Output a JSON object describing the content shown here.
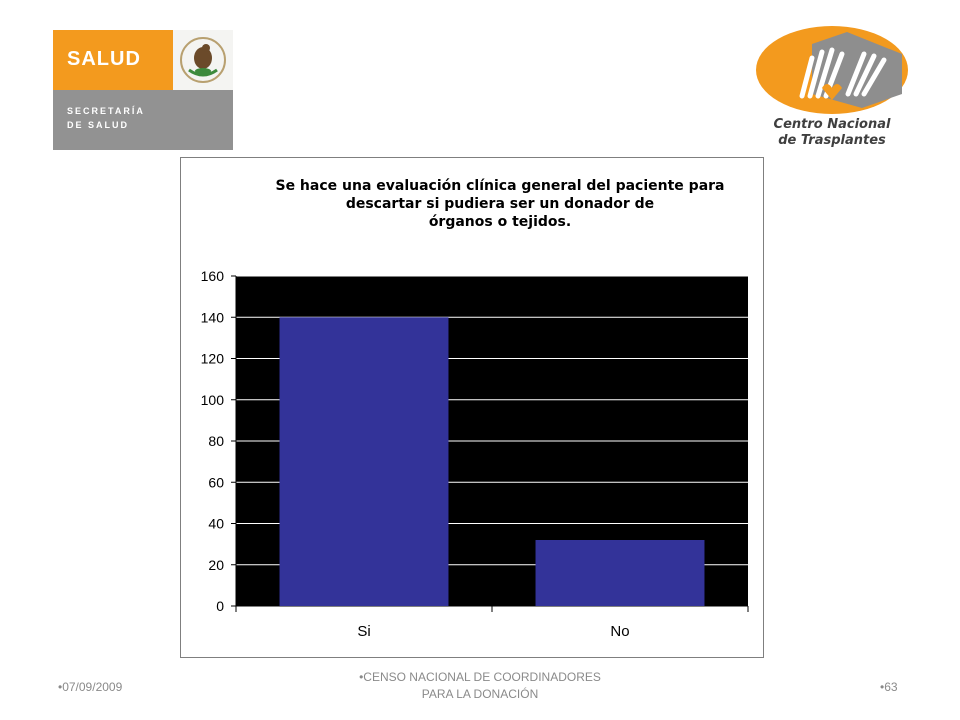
{
  "header": {
    "salud_logo": {
      "word": "SALUD",
      "line1": "SECRETARÍA",
      "line2": "DE SALUD"
    },
    "cenatra_logo": {
      "line1": "Centro Nacional",
      "line2": "de Trasplantes"
    }
  },
  "chart_data": {
    "type": "bar",
    "title_lines": [
      "Se hace una evaluación clínica general del paciente para",
      "descartar si pudiera ser un donador de",
      "órganos o tejidos."
    ],
    "categories": [
      "Si",
      "No"
    ],
    "values": [
      140,
      32
    ],
    "ylim": [
      0,
      160
    ],
    "yticks": [
      "0",
      "20",
      "40",
      "60",
      "80",
      "100",
      "120",
      "140",
      "160"
    ],
    "xlabel": "",
    "ylabel": "",
    "grid": true,
    "legend": "none",
    "colors": {
      "bar": "#333399",
      "plot_background": "#000000",
      "gridline": "#ffffff"
    }
  },
  "footer": {
    "date": "•07/09/2009",
    "center_line1": "•CENSO NACIONAL DE COORDINADORES",
    "center_line2": "PARA LA DONACIÓN",
    "page": "•63"
  }
}
